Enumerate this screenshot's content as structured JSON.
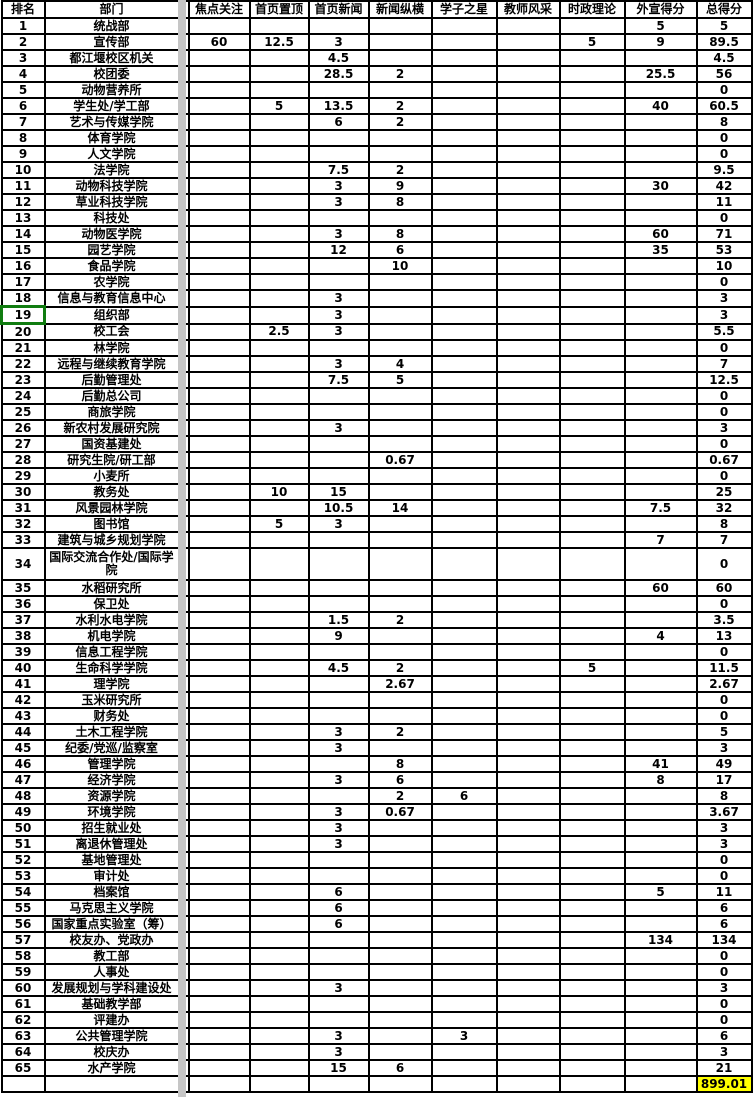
{
  "sheet": {
    "columns": [
      {
        "key": "rank",
        "label": "排名"
      },
      {
        "key": "dept",
        "label": "部门"
      },
      {
        "key": "focus",
        "label": "焦点关注"
      },
      {
        "key": "top",
        "label": "首页置顶"
      },
      {
        "key": "news",
        "label": "首页新闻"
      },
      {
        "key": "zongheng",
        "label": "新闻纵横"
      },
      {
        "key": "star",
        "label": "学子之星"
      },
      {
        "key": "teacher",
        "label": "教师风采"
      },
      {
        "key": "politics",
        "label": "时政理论"
      },
      {
        "key": "external",
        "label": "外宣得分"
      },
      {
        "key": "total",
        "label": "总得分"
      }
    ],
    "rows": [
      [
        "1",
        "统战部",
        "",
        "",
        "",
        "",
        "",
        "",
        "",
        "5",
        "5"
      ],
      [
        "2",
        "宣传部",
        "60",
        "12.5",
        "3",
        "",
        "",
        "",
        "5",
        "9",
        "89.5"
      ],
      [
        "3",
        "都江堰校区机关",
        "",
        "",
        "4.5",
        "",
        "",
        "",
        "",
        "",
        "4.5"
      ],
      [
        "4",
        "校团委",
        "",
        "",
        "28.5",
        "2",
        "",
        "",
        "",
        "25.5",
        "56"
      ],
      [
        "5",
        "动物营养所",
        "",
        "",
        "",
        "",
        "",
        "",
        "",
        "",
        "0"
      ],
      [
        "6",
        "学生处/学工部",
        "",
        "5",
        "13.5",
        "2",
        "",
        "",
        "",
        "40",
        "60.5"
      ],
      [
        "7",
        "艺术与传媒学院",
        "",
        "",
        "6",
        "2",
        "",
        "",
        "",
        "",
        "8"
      ],
      [
        "8",
        "体育学院",
        "",
        "",
        "",
        "",
        "",
        "",
        "",
        "",
        "0"
      ],
      [
        "9",
        "人文学院",
        "",
        "",
        "",
        "",
        "",
        "",
        "",
        "",
        "0"
      ],
      [
        "10",
        "法学院",
        "",
        "",
        "7.5",
        "2",
        "",
        "",
        "",
        "",
        "9.5"
      ],
      [
        "11",
        "动物科技学院",
        "",
        "",
        "3",
        "9",
        "",
        "",
        "",
        "30",
        "42"
      ],
      [
        "12",
        "草业科技学院",
        "",
        "",
        "3",
        "8",
        "",
        "",
        "",
        "",
        "11"
      ],
      [
        "13",
        "科技处",
        "",
        "",
        "",
        "",
        "",
        "",
        "",
        "",
        "0"
      ],
      [
        "14",
        "动物医学院",
        "",
        "",
        "3",
        "8",
        "",
        "",
        "",
        "60",
        "71"
      ],
      [
        "15",
        "园艺学院",
        "",
        "",
        "12",
        "6",
        "",
        "",
        "",
        "35",
        "53"
      ],
      [
        "16",
        "食品学院",
        "",
        "",
        "",
        "10",
        "",
        "",
        "",
        "",
        "10"
      ],
      [
        "17",
        "农学院",
        "",
        "",
        "",
        "",
        "",
        "",
        "",
        "",
        "0"
      ],
      [
        "18",
        "信息与教育信息中心",
        "",
        "",
        "3",
        "",
        "",
        "",
        "",
        "",
        "3"
      ],
      [
        "19",
        "组织部",
        "",
        "",
        "3",
        "",
        "",
        "",
        "",
        "",
        "3"
      ],
      [
        "20",
        "校工会",
        "",
        "2.5",
        "3",
        "",
        "",
        "",
        "",
        "",
        "5.5"
      ],
      [
        "21",
        "林学院",
        "",
        "",
        "",
        "",
        "",
        "",
        "",
        "",
        "0"
      ],
      [
        "22",
        "远程与继续教育学院",
        "",
        "",
        "3",
        "4",
        "",
        "",
        "",
        "",
        "7"
      ],
      [
        "23",
        "后勤管理处",
        "",
        "",
        "7.5",
        "5",
        "",
        "",
        "",
        "",
        "12.5"
      ],
      [
        "24",
        "后勤总公司",
        "",
        "",
        "",
        "",
        "",
        "",
        "",
        "",
        "0"
      ],
      [
        "25",
        "商旅学院",
        "",
        "",
        "",
        "",
        "",
        "",
        "",
        "",
        "0"
      ],
      [
        "26",
        "新农村发展研究院",
        "",
        "",
        "3",
        "",
        "",
        "",
        "",
        "",
        "3"
      ],
      [
        "27",
        "国资基建处",
        "",
        "",
        "",
        "",
        "",
        "",
        "",
        "",
        "0"
      ],
      [
        "28",
        "研究生院/研工部",
        "",
        "",
        "",
        "0.67",
        "",
        "",
        "",
        "",
        "0.67"
      ],
      [
        "29",
        "小麦所",
        "",
        "",
        "",
        "",
        "",
        "",
        "",
        "",
        "0"
      ],
      [
        "30",
        "教务处",
        "",
        "10",
        "15",
        "",
        "",
        "",
        "",
        "",
        "25"
      ],
      [
        "31",
        "风景园林学院",
        "",
        "",
        "10.5",
        "14",
        "",
        "",
        "",
        "7.5",
        "32"
      ],
      [
        "32",
        "图书馆",
        "",
        "5",
        "3",
        "",
        "",
        "",
        "",
        "",
        "8"
      ],
      [
        "33",
        "建筑与城乡规划学院",
        "",
        "",
        "",
        "",
        "",
        "",
        "",
        "7",
        "7"
      ],
      [
        "34",
        "国际交流合作处/国际学院",
        "",
        "",
        "",
        "",
        "",
        "",
        "",
        "",
        "0"
      ],
      [
        "35",
        "水稻研究所",
        "",
        "",
        "",
        "",
        "",
        "",
        "",
        "60",
        "60"
      ],
      [
        "36",
        "保卫处",
        "",
        "",
        "",
        "",
        "",
        "",
        "",
        "",
        "0"
      ],
      [
        "37",
        "水利水电学院",
        "",
        "",
        "1.5",
        "2",
        "",
        "",
        "",
        "",
        "3.5"
      ],
      [
        "38",
        "机电学院",
        "",
        "",
        "9",
        "",
        "",
        "",
        "",
        "4",
        "13"
      ],
      [
        "39",
        "信息工程学院",
        "",
        "",
        "",
        "",
        "",
        "",
        "",
        "",
        "0"
      ],
      [
        "40",
        "生命科学学院",
        "",
        "",
        "4.5",
        "2",
        "",
        "",
        "5",
        "",
        "11.5"
      ],
      [
        "41",
        "理学院",
        "",
        "",
        "",
        "2.67",
        "",
        "",
        "",
        "",
        "2.67"
      ],
      [
        "42",
        "玉米研究所",
        "",
        "",
        "",
        "",
        "",
        "",
        "",
        "",
        "0"
      ],
      [
        "43",
        "财务处",
        "",
        "",
        "",
        "",
        "",
        "",
        "",
        "",
        "0"
      ],
      [
        "44",
        "土木工程学院",
        "",
        "",
        "3",
        "2",
        "",
        "",
        "",
        "",
        "5"
      ],
      [
        "45",
        "纪委/党巡/监察室",
        "",
        "",
        "3",
        "",
        "",
        "",
        "",
        "",
        "3"
      ],
      [
        "46",
        "管理学院",
        "",
        "",
        "",
        "8",
        "",
        "",
        "",
        "41",
        "49"
      ],
      [
        "47",
        "经济学院",
        "",
        "",
        "3",
        "6",
        "",
        "",
        "",
        "8",
        "17"
      ],
      [
        "48",
        "资源学院",
        "",
        "",
        "",
        "2",
        "6",
        "",
        "",
        "",
        "8"
      ],
      [
        "49",
        "环境学院",
        "",
        "",
        "3",
        "0.67",
        "",
        "",
        "",
        "",
        "3.67"
      ],
      [
        "50",
        "招生就业处",
        "",
        "",
        "3",
        "",
        "",
        "",
        "",
        "",
        "3"
      ],
      [
        "51",
        "离退休管理处",
        "",
        "",
        "3",
        "",
        "",
        "",
        "",
        "",
        "3"
      ],
      [
        "52",
        "基地管理处",
        "",
        "",
        "",
        "",
        "",
        "",
        "",
        "",
        "0"
      ],
      [
        "53",
        "审计处",
        "",
        "",
        "",
        "",
        "",
        "",
        "",
        "",
        "0"
      ],
      [
        "54",
        "档案馆",
        "",
        "",
        "6",
        "",
        "",
        "",
        "",
        "5",
        "11"
      ],
      [
        "55",
        "马克思主义学院",
        "",
        "",
        "6",
        "",
        "",
        "",
        "",
        "",
        "6"
      ],
      [
        "56",
        "国家重点实验室（筹）",
        "",
        "",
        "6",
        "",
        "",
        "",
        "",
        "",
        "6"
      ],
      [
        "57",
        "校友办、党政办",
        "",
        "",
        "",
        "",
        "",
        "",
        "",
        "134",
        "134"
      ],
      [
        "58",
        "教工部",
        "",
        "",
        "",
        "",
        "",
        "",
        "",
        "",
        "0"
      ],
      [
        "59",
        "人事处",
        "",
        "",
        "",
        "",
        "",
        "",
        "",
        "",
        "0"
      ],
      [
        "60",
        "发展规划与学科建设处",
        "",
        "",
        "3",
        "",
        "",
        "",
        "",
        "",
        "3"
      ],
      [
        "61",
        "基础教学部",
        "",
        "",
        "",
        "",
        "",
        "",
        "",
        "",
        "0"
      ],
      [
        "62",
        "评建办",
        "",
        "",
        "",
        "",
        "",
        "",
        "",
        "",
        "0"
      ],
      [
        "63",
        "公共管理学院",
        "",
        "",
        "3",
        "",
        "3",
        "",
        "",
        "",
        "6"
      ],
      [
        "64",
        "校庆办",
        "",
        "",
        "3",
        "",
        "",
        "",
        "",
        "",
        "3"
      ],
      [
        "65",
        "水产学院",
        "",
        "",
        "15",
        "6",
        "",
        "",
        "",
        "",
        "21"
      ]
    ],
    "grand_total": "899.01",
    "selected_rank": "19",
    "tall_rank": "34",
    "colors": {
      "grid": "#000000",
      "highlight": "#ffff00",
      "selection": "#107c10",
      "strip": "#c6c6c6"
    }
  }
}
